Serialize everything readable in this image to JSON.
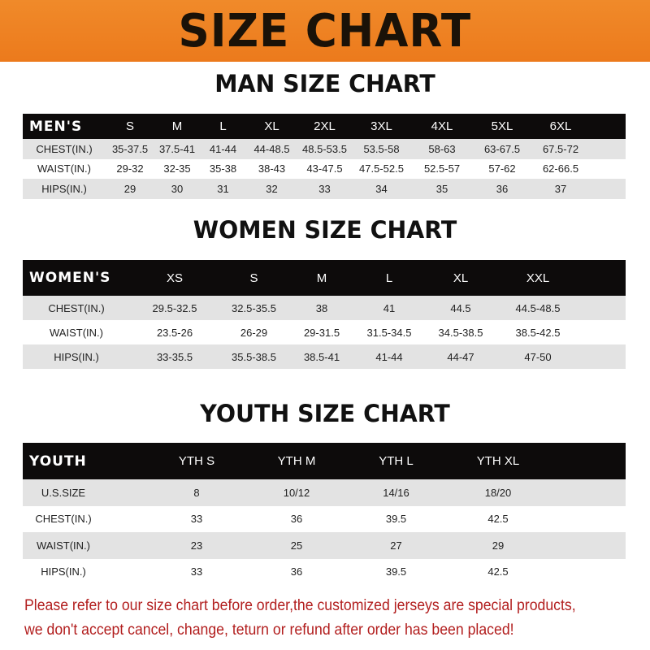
{
  "banner": {
    "title": "SIZE CHART",
    "color": "#ee7f22"
  },
  "men": {
    "title": "MAN SIZE CHART",
    "header": [
      "MEN'S",
      "S",
      "M",
      "L",
      "XL",
      "2XL",
      "3XL",
      "4XL",
      "5XL",
      "6XL"
    ],
    "rows": [
      [
        "CHEST(IN.)",
        "35-37.5",
        "37.5-41",
        "41-44",
        "44-48.5",
        "48.5-53.5",
        "53.5-58",
        "58-63",
        "63-67.5",
        "67.5-72"
      ],
      [
        "WAIST(IN.)",
        "29-32",
        "32-35",
        "35-38",
        "38-43",
        "43-47.5",
        "47.5-52.5",
        "52.5-57",
        "57-62",
        "62-66.5"
      ],
      [
        "HIPS(IN.)",
        "29",
        "30",
        "31",
        "32",
        "33",
        "34",
        "35",
        "36",
        "37"
      ]
    ]
  },
  "women": {
    "title": "WOMEN SIZE CHART",
    "header": [
      "WOMEN'S",
      "XS",
      "S",
      "M",
      "L",
      "XL",
      "XXL"
    ],
    "rows": [
      [
        "CHEST(IN.)",
        "29.5-32.5",
        "32.5-35.5",
        "38",
        "41",
        "44.5",
        "44.5-48.5"
      ],
      [
        "WAIST(IN.)",
        "23.5-26",
        "26-29",
        "29-31.5",
        "31.5-34.5",
        "34.5-38.5",
        "38.5-42.5"
      ],
      [
        "HIPS(IN.)",
        "33-35.5",
        "35.5-38.5",
        "38.5-41",
        "41-44",
        "44-47",
        "47-50"
      ]
    ]
  },
  "youth": {
    "title": "YOUTH SIZE CHART",
    "header": [
      "YOUTH",
      "YTH S",
      "YTH M",
      "YTH L",
      "YTH XL"
    ],
    "rows": [
      [
        "U.S.SIZE",
        "8",
        "10/12",
        "14/16",
        "18/20"
      ],
      [
        "CHEST(IN.)",
        "33",
        "36",
        "39.5",
        "42.5"
      ],
      [
        "WAIST(IN.)",
        "23",
        "25",
        "27",
        "29"
      ],
      [
        "HIPS(IN.)",
        "33",
        "36",
        "39.5",
        "42.5"
      ]
    ]
  },
  "notice": {
    "line1": "Please refer to our size chart before order,the customized jerseys are special products,",
    "line2": "we don't accept cancel, change, teturn or refund after order has been placed!"
  }
}
